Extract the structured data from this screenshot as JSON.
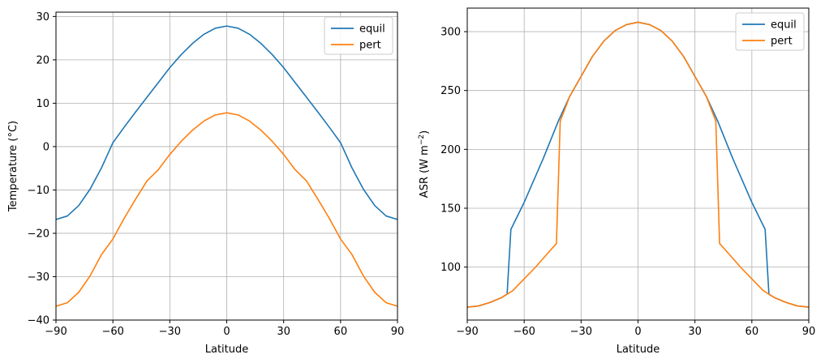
{
  "chart_data": [
    {
      "type": "line",
      "title": "",
      "xlabel": "Latitude",
      "ylabel": "Temperature (°C)",
      "xlim": [
        -90,
        90
      ],
      "ylim": [
        -40,
        31
      ],
      "xticks": [
        -90,
        -60,
        -30,
        0,
        30,
        60,
        90
      ],
      "xtick_labels": [
        "−90",
        "−60",
        "−30",
        "0",
        "30",
        "60",
        "90"
      ],
      "yticks": [
        -40,
        -30,
        -20,
        -10,
        0,
        10,
        20,
        30
      ],
      "ytick_labels": [
        "−40",
        "−30",
        "−20",
        "−10",
        "0",
        "10",
        "20",
        "30"
      ],
      "grid": true,
      "legend": "top-right",
      "series": [
        {
          "name": "equil",
          "color": "#1f77b4",
          "x": [
            -90,
            -84,
            -78,
            -72,
            -66,
            -60,
            -54,
            -48,
            -42,
            -36,
            -30,
            -24,
            -18,
            -12,
            -6,
            0,
            6,
            12,
            18,
            24,
            30,
            36,
            42,
            48,
            54,
            60,
            66,
            72,
            78,
            84,
            90
          ],
          "y": [
            -16.8,
            -16.0,
            -13.6,
            -9.8,
            -4.9,
            0.9,
            4.5,
            8.0,
            11.4,
            14.8,
            18.2,
            21.2,
            23.8,
            25.9,
            27.3,
            27.8,
            27.3,
            25.9,
            23.8,
            21.2,
            18.2,
            14.8,
            11.4,
            8.0,
            4.5,
            0.9,
            -4.9,
            -9.8,
            -13.6,
            -16.0,
            -16.8
          ]
        },
        {
          "name": "pert",
          "color": "#ff7f0e",
          "x": [
            -90,
            -84,
            -78,
            -72,
            -66,
            -60,
            -54,
            -48,
            -42,
            -36,
            -30,
            -24,
            -18,
            -12,
            -6,
            0,
            6,
            12,
            18,
            24,
            30,
            36,
            42,
            48,
            54,
            60,
            66,
            72,
            78,
            84,
            90
          ],
          "y": [
            -36.8,
            -36.0,
            -33.6,
            -29.8,
            -24.9,
            -21.3,
            -16.5,
            -12.1,
            -7.9,
            -5.3,
            -1.8,
            1.2,
            3.8,
            5.9,
            7.3,
            7.8,
            7.3,
            5.9,
            3.8,
            1.2,
            -1.8,
            -5.3,
            -7.9,
            -12.1,
            -16.5,
            -21.3,
            -24.9,
            -29.8,
            -33.6,
            -36.0,
            -36.8
          ]
        }
      ]
    },
    {
      "type": "line",
      "title": "",
      "xlabel": "Latitude",
      "ylabel_main": "ASR (W m",
      "ylabel_sup": "−2",
      "ylabel_end": ")",
      "xlim": [
        -90,
        90
      ],
      "ylim": [
        55,
        320
      ],
      "xticks": [
        -90,
        -60,
        -30,
        0,
        30,
        60,
        90
      ],
      "xtick_labels": [
        "−90",
        "−60",
        "−30",
        "0",
        "30",
        "60",
        "90"
      ],
      "yticks": [
        100,
        150,
        200,
        250,
        300
      ],
      "ytick_labels": [
        "100",
        "150",
        "200",
        "250",
        "300"
      ],
      "grid": true,
      "legend": "top-right",
      "series": [
        {
          "name": "equil",
          "color": "#1f77b4",
          "x": [
            -90,
            -84,
            -78,
            -72,
            -69,
            -67,
            -60,
            -50,
            -42,
            -36,
            -30,
            -24,
            -18,
            -12,
            -6,
            0,
            6,
            12,
            18,
            24,
            30,
            36,
            42,
            50,
            60,
            67,
            69,
            72,
            78,
            84,
            90
          ],
          "y": [
            66,
            67,
            70,
            74,
            77,
            132,
            155,
            192,
            224,
            245,
            262,
            279,
            292,
            301,
            306,
            308,
            306,
            301,
            292,
            279,
            262,
            245,
            224,
            192,
            155,
            132,
            77,
            74,
            70,
            67,
            66
          ],
          "draw_order": 0
        },
        {
          "name": "pert",
          "color": "#ff7f0e",
          "x": [
            -90,
            -84,
            -78,
            -72,
            -66,
            -60,
            -54,
            -48,
            -43,
            -41,
            -36,
            -30,
            -24,
            -18,
            -12,
            -6,
            0,
            6,
            12,
            18,
            24,
            30,
            36,
            41,
            43,
            48,
            54,
            60,
            66,
            72,
            78,
            84,
            90
          ],
          "y": [
            66,
            67,
            70,
            74,
            80,
            90,
            100,
            111,
            120,
            224,
            245,
            262,
            279,
            292,
            301,
            306,
            308,
            306,
            301,
            292,
            279,
            262,
            245,
            224,
            120,
            111,
            100,
            90,
            80,
            74,
            70,
            67,
            66
          ],
          "draw_order": 1
        }
      ]
    }
  ]
}
